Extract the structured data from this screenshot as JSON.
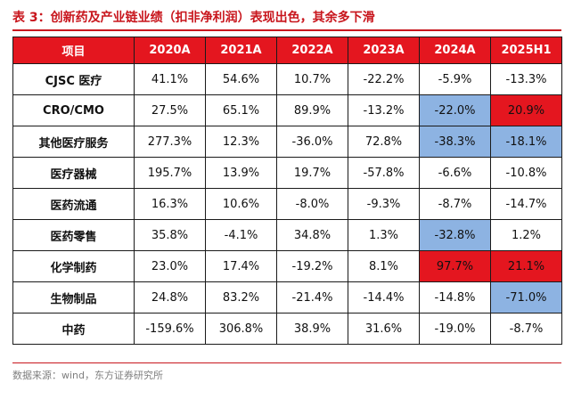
{
  "title": "表 3：创新药及产业链业绩（扣非净利润）表现出色，其余多下滑",
  "source": "数据来源：wind，东方证券研究所",
  "colors": {
    "header_bg": "#e4161f",
    "highlight_blue": "#8db3e2",
    "highlight_red": "#e4161f",
    "title_red": "#c8161d"
  },
  "table": {
    "headers": [
      "项目",
      "2020A",
      "2021A",
      "2022A",
      "2023A",
      "2024A",
      "2025H1"
    ],
    "rows": [
      {
        "label": "CJSC 医疗",
        "values": [
          "41.1%",
          "54.6%",
          "10.7%",
          "-22.2%",
          "-5.9%",
          "-13.3%"
        ],
        "highlights": [
          "",
          "",
          "",
          "",
          "",
          ""
        ]
      },
      {
        "label": "CRO/CMO",
        "values": [
          "27.5%",
          "65.1%",
          "89.9%",
          "-13.2%",
          "-22.0%",
          "20.9%"
        ],
        "highlights": [
          "",
          "",
          "",
          "",
          "blue",
          "red"
        ]
      },
      {
        "label": "其他医疗服务",
        "values": [
          "277.3%",
          "12.3%",
          "-36.0%",
          "72.8%",
          "-38.3%",
          "-18.1%"
        ],
        "highlights": [
          "",
          "",
          "",
          "",
          "blue",
          "blue"
        ]
      },
      {
        "label": "医疗器械",
        "values": [
          "195.7%",
          "13.9%",
          "19.7%",
          "-57.8%",
          "-6.6%",
          "-10.8%"
        ],
        "highlights": [
          "",
          "",
          "",
          "",
          "",
          ""
        ]
      },
      {
        "label": "医药流通",
        "values": [
          "16.3%",
          "10.6%",
          "-8.0%",
          "-9.3%",
          "-8.7%",
          "-14.7%"
        ],
        "highlights": [
          "",
          "",
          "",
          "",
          "",
          ""
        ]
      },
      {
        "label": "医药零售",
        "values": [
          "35.8%",
          "-4.1%",
          "34.8%",
          "1.3%",
          "-32.8%",
          "1.2%"
        ],
        "highlights": [
          "",
          "",
          "",
          "",
          "blue",
          ""
        ]
      },
      {
        "label": "化学制药",
        "values": [
          "23.0%",
          "17.4%",
          "-19.2%",
          "8.1%",
          "97.7%",
          "21.1%"
        ],
        "highlights": [
          "",
          "",
          "",
          "",
          "red",
          "red"
        ]
      },
      {
        "label": "生物制品",
        "values": [
          "24.8%",
          "83.2%",
          "-21.4%",
          "-14.4%",
          "-14.8%",
          "-71.0%"
        ],
        "highlights": [
          "",
          "",
          "",
          "",
          "",
          "blue"
        ]
      },
      {
        "label": "中药",
        "values": [
          "-159.6%",
          "306.8%",
          "38.9%",
          "31.6%",
          "-19.0%",
          "-8.7%"
        ],
        "highlights": [
          "",
          "",
          "",
          "",
          "",
          ""
        ]
      }
    ]
  }
}
